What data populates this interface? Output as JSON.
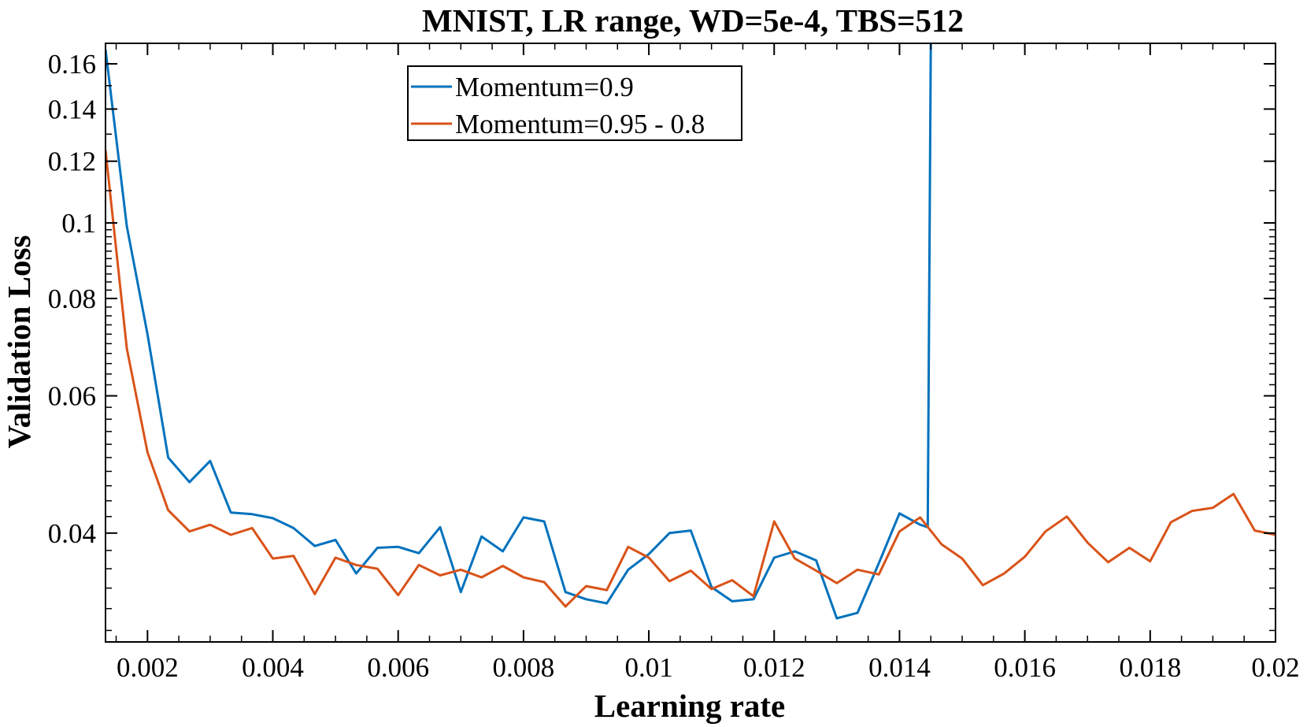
{
  "chart_data": {
    "type": "line",
    "title": "MNIST, LR range, WD=5e-4, TBS=512",
    "xlabel": "Learning rate",
    "ylabel": "Validation Loss",
    "xlim": [
      0.00133,
      0.02
    ],
    "ylim": [
      0.029,
      0.17
    ],
    "yscale": "log",
    "grid": false,
    "legend_position": "top-center",
    "x_ticks": [
      0.002,
      0.004,
      0.006,
      0.008,
      0.01,
      0.012,
      0.014,
      0.016,
      0.018,
      0.02
    ],
    "x_tick_labels": [
      "0.002",
      "0.004",
      "0.006",
      "0.008",
      "0.01",
      "0.012",
      "0.014",
      "0.016",
      "0.018",
      "0.02"
    ],
    "y_ticks": [
      0.04,
      0.06,
      0.08,
      0.1,
      0.12,
      0.14,
      0.16
    ],
    "y_tick_labels": [
      "0.04",
      "0.06",
      "0.08",
      "0.1",
      "0.12",
      "0.14",
      "0.16"
    ],
    "series": [
      {
        "name": "Momentum=0.9",
        "color": "#0072bd",
        "x": [
          0.00133,
          0.00167,
          0.002,
          0.00233,
          0.00267,
          0.003,
          0.00333,
          0.00367,
          0.004,
          0.00433,
          0.00467,
          0.005,
          0.00533,
          0.00567,
          0.006,
          0.00633,
          0.00667,
          0.007,
          0.00733,
          0.00767,
          0.008,
          0.00833,
          0.00867,
          0.009,
          0.00933,
          0.00967,
          0.01,
          0.01033,
          0.01067,
          0.011,
          0.01133,
          0.01167,
          0.012,
          0.01233,
          0.01267,
          0.013,
          0.01333,
          0.01367,
          0.014,
          0.01433,
          0.01445,
          0.0145
        ],
        "y": [
          0.167,
          0.099,
          0.072,
          0.05,
          0.0465,
          0.0495,
          0.0425,
          0.0423,
          0.0418,
          0.0406,
          0.0385,
          0.0392,
          0.0355,
          0.0383,
          0.0384,
          0.0377,
          0.0407,
          0.0336,
          0.0396,
          0.0379,
          0.0419,
          0.0414,
          0.0336,
          0.0329,
          0.0325,
          0.0359,
          0.0376,
          0.04,
          0.0403,
          0.0341,
          0.0327,
          0.0329,
          0.0372,
          0.0379,
          0.0369,
          0.0311,
          0.0316,
          0.0366,
          0.0424,
          0.041,
          0.0407,
          0.17
        ]
      },
      {
        "name": "Momentum=0.95 - 0.8",
        "color": "#d95319",
        "x": [
          0.00133,
          0.00167,
          0.002,
          0.00233,
          0.00267,
          0.003,
          0.00333,
          0.00367,
          0.004,
          0.00433,
          0.00467,
          0.005,
          0.00533,
          0.00567,
          0.006,
          0.00633,
          0.00667,
          0.007,
          0.00733,
          0.00767,
          0.008,
          0.00833,
          0.00867,
          0.009,
          0.00933,
          0.00967,
          0.01,
          0.01033,
          0.01067,
          0.011,
          0.01133,
          0.01167,
          0.012,
          0.01233,
          0.01267,
          0.013,
          0.01333,
          0.01367,
          0.014,
          0.01433,
          0.01467,
          0.015,
          0.01533,
          0.01567,
          0.016,
          0.01633,
          0.01667,
          0.017,
          0.01733,
          0.01767,
          0.018,
          0.01833,
          0.01867,
          0.019,
          0.01933,
          0.01967,
          0.02
        ],
        "y": [
          0.124,
          0.069,
          0.0508,
          0.0428,
          0.0402,
          0.041,
          0.0398,
          0.0406,
          0.0371,
          0.0374,
          0.0334,
          0.0372,
          0.0364,
          0.036,
          0.0333,
          0.0364,
          0.0353,
          0.0359,
          0.0351,
          0.0363,
          0.0351,
          0.0346,
          0.0322,
          0.0342,
          0.0338,
          0.0384,
          0.0372,
          0.0347,
          0.0358,
          0.0339,
          0.0348,
          0.0332,
          0.0414,
          0.0371,
          0.0358,
          0.0345,
          0.0359,
          0.0354,
          0.0402,
          0.0419,
          0.0387,
          0.0371,
          0.0343,
          0.0355,
          0.0373,
          0.0402,
          0.042,
          0.0389,
          0.0367,
          0.0383,
          0.0368,
          0.0413,
          0.0427,
          0.0431,
          0.0449,
          0.0403,
          0.0398
        ]
      }
    ]
  }
}
